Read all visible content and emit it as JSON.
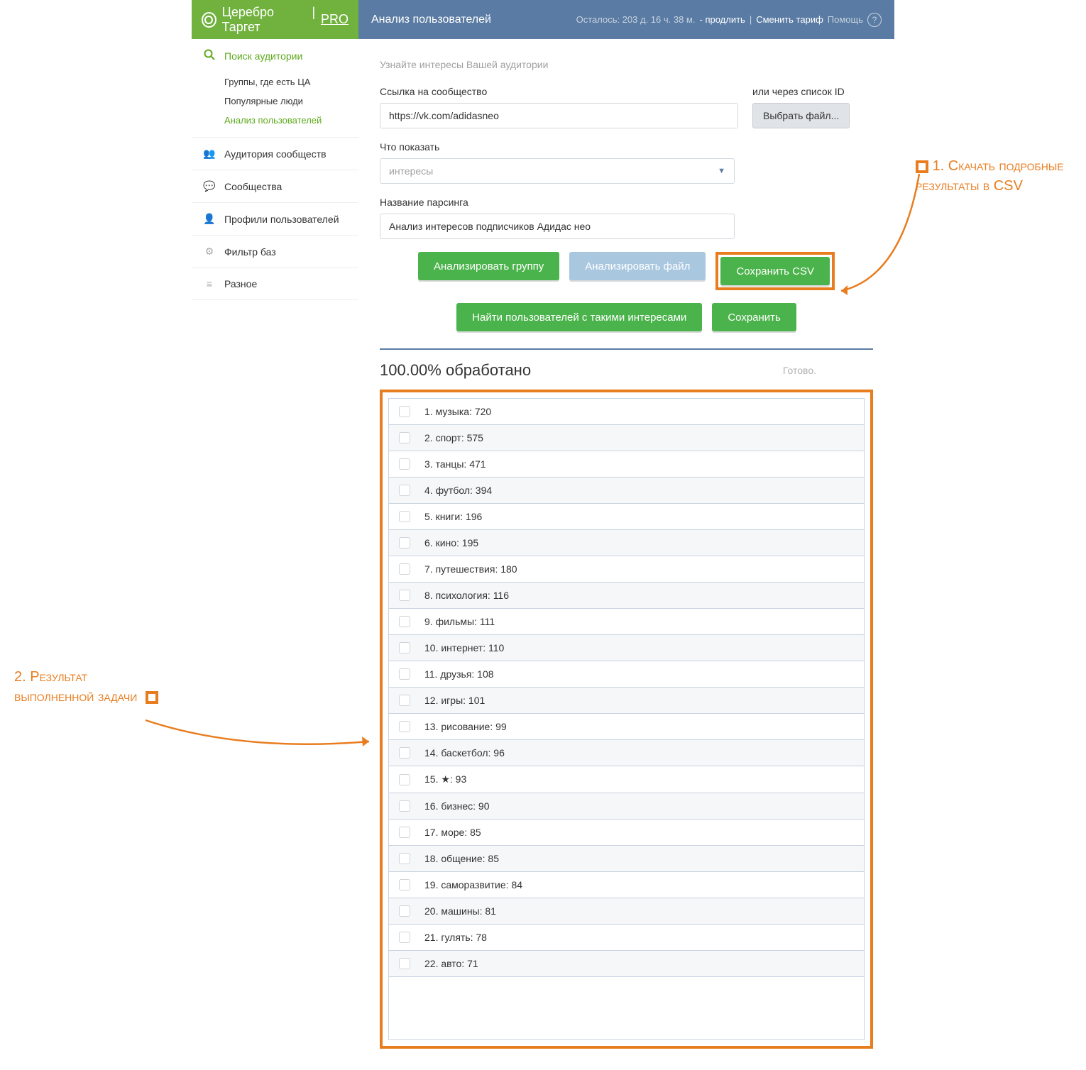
{
  "brand": {
    "name": "Церебро Таргет",
    "pro": "PRO"
  },
  "header": {
    "title": "Анализ пользователей",
    "remaining": "Осталось: 203 д. 16 ч. 38 м.",
    "extend": "- продлить",
    "change_tariff": "Сменить тариф",
    "help": "Помощь"
  },
  "sidebar": {
    "search": {
      "label": "Поиск аудитории",
      "sub": [
        {
          "label": "Группы, где есть ЦА",
          "active": false
        },
        {
          "label": "Популярные люди",
          "active": false
        },
        {
          "label": "Анализ пользователей",
          "active": true
        }
      ]
    },
    "items": [
      {
        "icon": "👥",
        "label": "Аудитория сообществ"
      },
      {
        "icon": "💬",
        "label": "Сообщества"
      },
      {
        "icon": "👤",
        "label": "Профили пользователей"
      },
      {
        "icon": "⚙",
        "label": "Фильтр баз"
      },
      {
        "icon": "≡",
        "label": "Разное"
      }
    ]
  },
  "form": {
    "hint": "Узнайте интересы Вашей аудитории",
    "link_label": "Ссылка на сообщество",
    "link_value": "https://vk.com/adidasneo",
    "or_label": "или через список ID",
    "file_btn": "Выбрать файл...",
    "show_label": "Что показать",
    "show_value": "интересы",
    "parse_label": "Название парсинга",
    "parse_value": "Анализ интересов подписчиков Адидас нео",
    "btn_analyze_group": "Анализировать группу",
    "btn_analyze_file": "Анализировать файл",
    "btn_save_csv": "Сохранить CSV",
    "btn_find_users": "Найти пользователей с такими интересами",
    "btn_save": "Сохранить"
  },
  "status": {
    "percent": "100.00% обработано",
    "done": "Готово."
  },
  "results": [
    {
      "n": 1,
      "label": "музыка",
      "count": 720
    },
    {
      "n": 2,
      "label": "спорт",
      "count": 575
    },
    {
      "n": 3,
      "label": "танцы",
      "count": 471
    },
    {
      "n": 4,
      "label": "футбол",
      "count": 394
    },
    {
      "n": 5,
      "label": "книги",
      "count": 196
    },
    {
      "n": 6,
      "label": "кино",
      "count": 195
    },
    {
      "n": 7,
      "label": "путешествия",
      "count": 180
    },
    {
      "n": 8,
      "label": "психология",
      "count": 116
    },
    {
      "n": 9,
      "label": "фильмы",
      "count": 111
    },
    {
      "n": 10,
      "label": "интернет",
      "count": 110
    },
    {
      "n": 11,
      "label": "друзья",
      "count": 108
    },
    {
      "n": 12,
      "label": "игры",
      "count": 101
    },
    {
      "n": 13,
      "label": "рисование",
      "count": 99
    },
    {
      "n": 14,
      "label": "баскетбол",
      "count": 96
    },
    {
      "n": 15,
      "label": "★",
      "count": 93
    },
    {
      "n": 16,
      "label": "бизнес",
      "count": 90
    },
    {
      "n": 17,
      "label": "море",
      "count": 85
    },
    {
      "n": 18,
      "label": "общение",
      "count": 85
    },
    {
      "n": 19,
      "label": "саморазвитие",
      "count": 84
    },
    {
      "n": 20,
      "label": "машины",
      "count": 81
    },
    {
      "n": 21,
      "label": "гулять",
      "count": 78
    },
    {
      "n": 22,
      "label": "авто",
      "count": 71
    }
  ],
  "annotations": {
    "a1": "1. Скачать подробные результаты в CSV",
    "a2": "2. Результат выполненной задачи"
  },
  "colors": {
    "accent_green": "#4bb34b",
    "accent_orange": "#e87d1f",
    "header_blue": "#5a7ba3",
    "brand_green": "#70b23d"
  }
}
